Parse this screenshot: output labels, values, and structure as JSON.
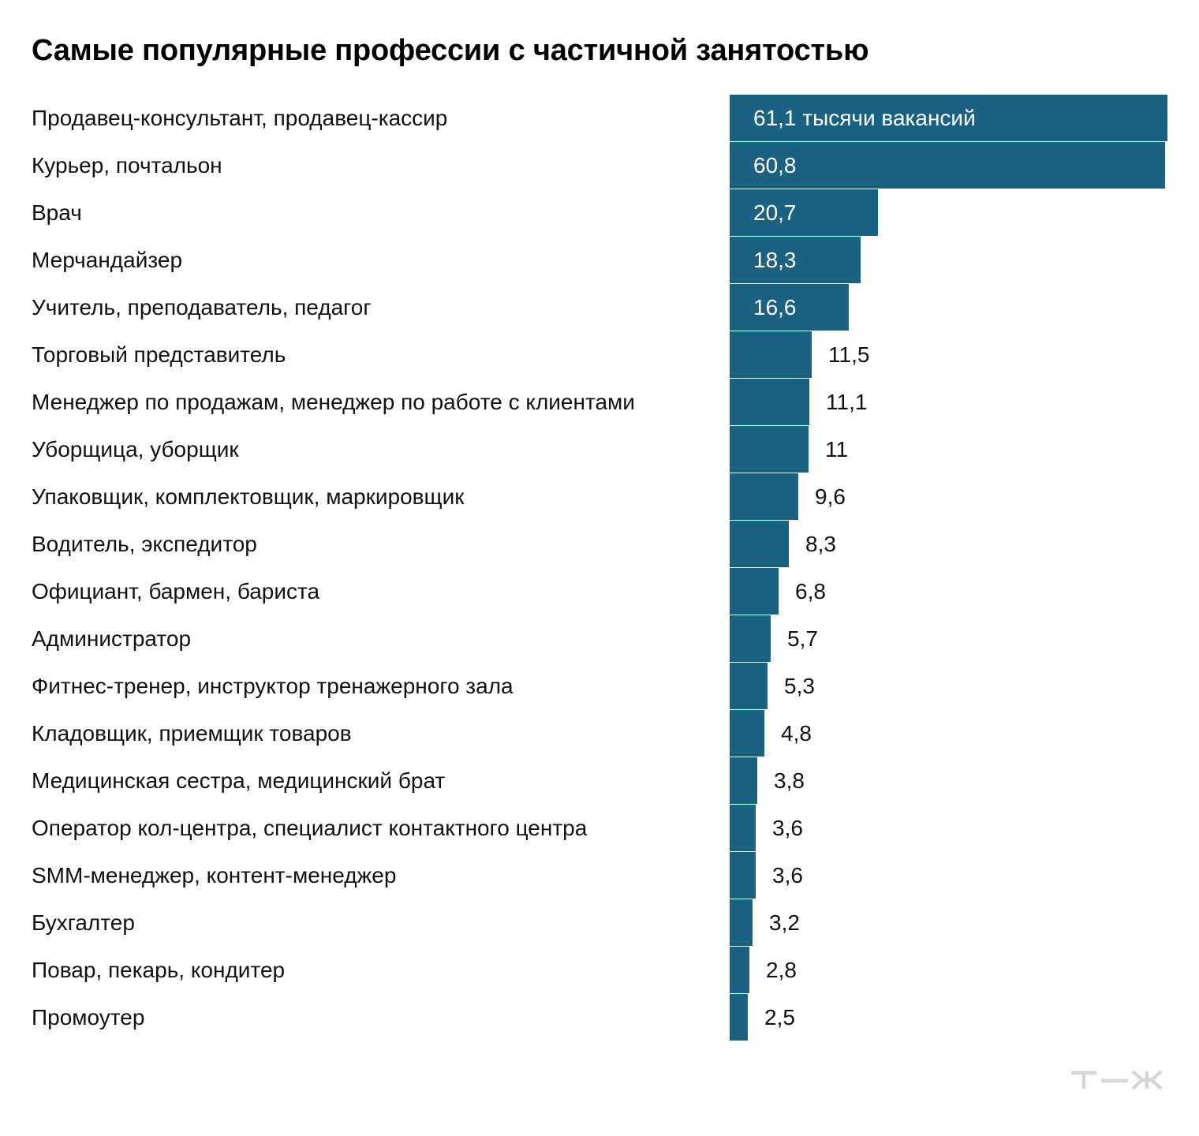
{
  "title": "Самые популярные профессии с частичной занятостью",
  "colors": {
    "bar": "#1b6182",
    "label_inside": "#ffffff",
    "label_outside": "#111111",
    "logo": "#d6d6d6"
  },
  "logo": "т—ж",
  "chart_data": {
    "type": "bar",
    "orientation": "horizontal",
    "title": "Самые популярные профессии с частичной занятостью",
    "unit_label": "тысячи вакансий",
    "xlim": [
      0,
      61.1
    ],
    "grid": false,
    "categories": [
      "Продавец-консультант, продавец-кассир",
      "Курьер, почтальон",
      "Врач",
      "Мерчандайзер",
      "Учитель, преподаватель, педагог",
      "Торговый представитель",
      "Менеджер по продажам, менеджер по работе с клиентами",
      "Уборщица, уборщик",
      "Упаковщик, комплектовщик, маркировщик",
      "Водитель, экспедитор",
      "Официант, бармен, бариста",
      "Администратор",
      "Фитнес-тренер, инструктор тренажерного зала",
      "Кладовщик, приемщик товаров",
      "Медицинская сестра, медицинский брат",
      "Оператор кол-центра, специалист контактного центра",
      "SMM-менеджер, контент-менеджер",
      "Бухгалтер",
      "Повар, пекарь, кондитер",
      "Промоутер"
    ],
    "values": [
      61.1,
      60.8,
      20.7,
      18.3,
      16.6,
      11.5,
      11.1,
      11,
      9.6,
      8.3,
      6.8,
      5.7,
      5.3,
      4.8,
      3.8,
      3.6,
      3.6,
      3.2,
      2.8,
      2.5
    ],
    "data_labels": [
      "61,1 тысячи вакансий",
      "60,8",
      "20,7",
      "18,3",
      "16,6",
      "11,5",
      "11,1",
      "11",
      "9,6",
      "8,3",
      "6,8",
      "5,7",
      "5,3",
      "4,8",
      "3,8",
      "3,6",
      "3,6",
      "3,2",
      "2,8",
      "2,5"
    ]
  }
}
